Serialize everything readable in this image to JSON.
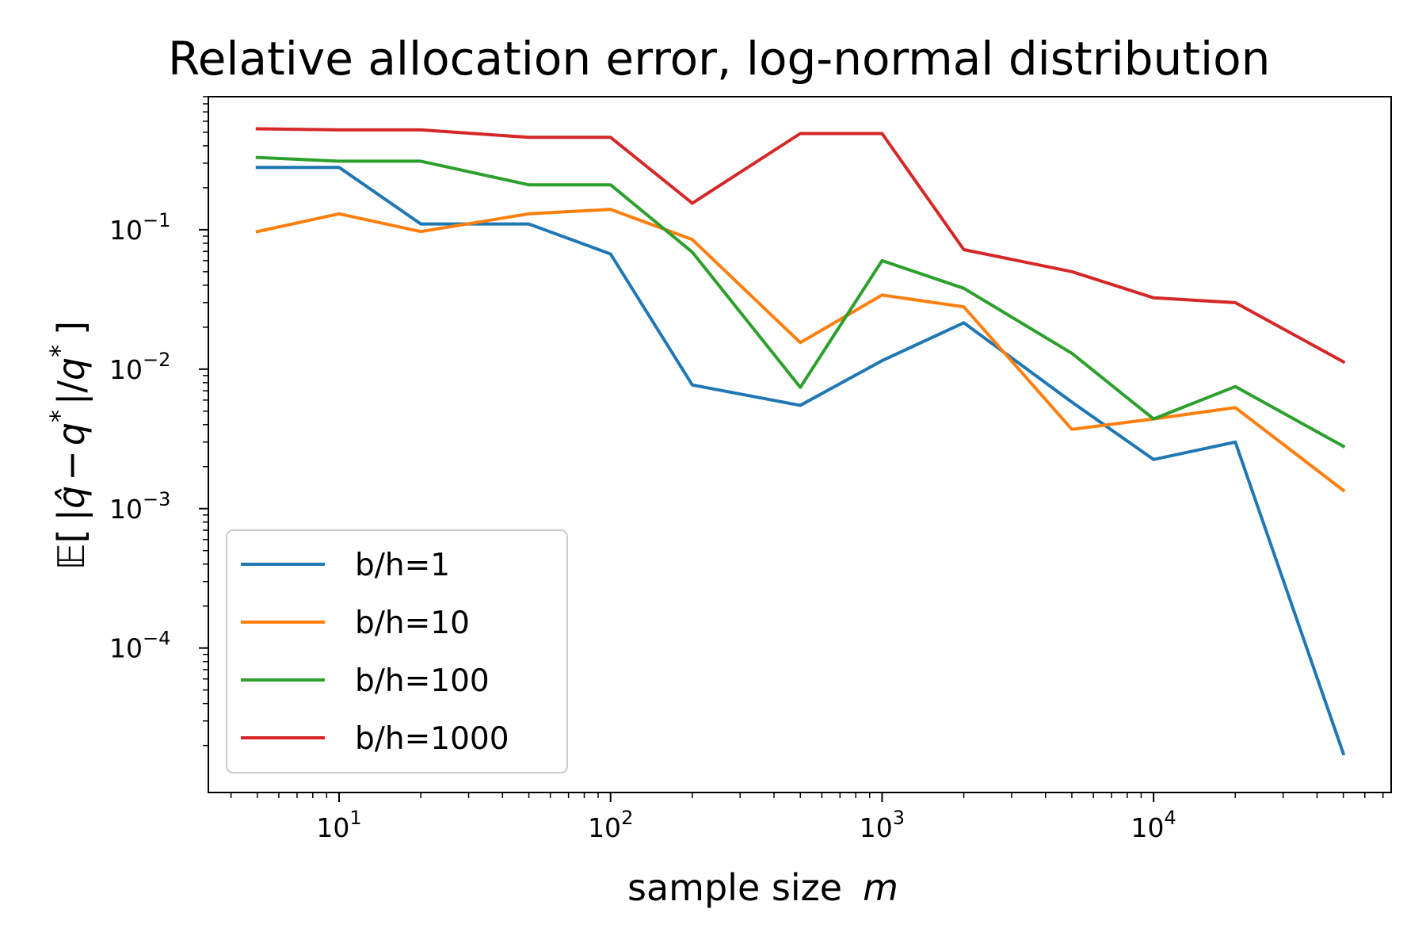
{
  "chart_data": {
    "type": "line",
    "title": "Relative allocation error, log-normal distribution",
    "xlabel": "sample size",
    "xlabel_var": "m",
    "ylabel_parts": {
      "E": "𝔼",
      "bracket_open": "[",
      "bracket_close": "]",
      "qhat": "q̂",
      "minus": "−",
      "q": "q",
      "star": "*",
      "bar": "|",
      "slash": "/"
    },
    "xscale": "log",
    "yscale": "log",
    "xlim": [
      3.3,
      75000
    ],
    "ylim": [
      9.2e-06,
      0.9
    ],
    "xticks": [
      {
        "base": "10",
        "exp": "1",
        "value": 10
      },
      {
        "base": "10",
        "exp": "2",
        "value": 100
      },
      {
        "base": "10",
        "exp": "3",
        "value": 1000
      },
      {
        "base": "10",
        "exp": "4",
        "value": 10000
      }
    ],
    "yticks": [
      {
        "base": "10",
        "exp": "−1",
        "value": 0.1
      },
      {
        "base": "10",
        "exp": "−2",
        "value": 0.01
      },
      {
        "base": "10",
        "exp": "−3",
        "value": 0.001
      },
      {
        "base": "10",
        "exp": "−4",
        "value": 0.0001
      }
    ],
    "grid": false,
    "legend_position": "lower-left",
    "x": [
      5,
      10,
      20,
      50,
      100,
      200,
      500,
      1000,
      2000,
      5000,
      10000,
      20000,
      50000
    ],
    "series": [
      {
        "name": "b/h=1",
        "color": "#1f77b4",
        "values": [
          0.28,
          0.28,
          0.11,
          0.11,
          0.067,
          0.0077,
          0.0055,
          0.0115,
          0.0215,
          0.0058,
          0.00225,
          0.003,
          1.75e-05
        ]
      },
      {
        "name": "b/h=10",
        "color": "#ff7f0e",
        "values": [
          0.097,
          0.13,
          0.097,
          0.13,
          0.14,
          0.085,
          0.0155,
          0.034,
          0.028,
          0.0037,
          0.0044,
          0.0053,
          0.00135
        ]
      },
      {
        "name": "b/h=100",
        "color": "#2ca02c",
        "values": [
          0.33,
          0.31,
          0.31,
          0.21,
          0.21,
          0.069,
          0.0074,
          0.06,
          0.038,
          0.013,
          0.0044,
          0.0075,
          0.0028
        ]
      },
      {
        "name": "b/h=1000",
        "color": "#d62728",
        "values": [
          0.53,
          0.52,
          0.52,
          0.46,
          0.46,
          0.155,
          0.49,
          0.49,
          0.072,
          0.05,
          0.0325,
          0.03,
          0.0113
        ]
      }
    ]
  }
}
